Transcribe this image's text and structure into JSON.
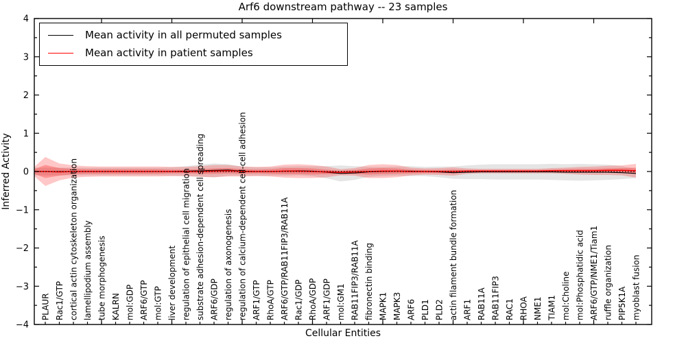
{
  "title": "Arf6 downstream pathway -- 23 samples",
  "axes": {
    "xlabel": "Cellular Entities",
    "ylabel": "Inferred Activity"
  },
  "legend": {
    "items": [
      {
        "label": "Mean activity in all permuted samples",
        "color": "#000000"
      },
      {
        "label": "Mean activity in patient samples",
        "color": "#ff0000"
      }
    ]
  },
  "chart_data": {
    "type": "line",
    "title": "Arf6 downstream pathway -- 23 samples",
    "xlabel": "Cellular Entities",
    "ylabel": "Inferred Activity",
    "ylim": [
      -4,
      4
    ],
    "yticks": [
      4,
      3,
      2,
      1,
      0,
      -1,
      -2,
      -3,
      -4
    ],
    "ytick_labels": [
      "4",
      "3",
      "2",
      "1",
      "0",
      "−1",
      "−2",
      "−3",
      "−4"
    ],
    "grid": false,
    "legend_position": "upper left",
    "zero_line": {
      "value": 0,
      "style": "dotted",
      "color": "#000000"
    },
    "categories": [
      "PLAUR",
      "Rac1/GTP",
      "cortical actin cytoskeleton organization",
      "lamellipodium assembly",
      "tube morphogenesis",
      "KALRN",
      "mol:GDP",
      "ARF6/GTP",
      "mol:GTP",
      "liver development",
      "regulation of epithelial cell migration",
      "substrate adhesion-dependent cell spreading",
      "ARF6/GDP",
      "regulation of axonogenesis",
      "regulation of calcium-dependent cell-cell adhesion",
      "ARF1/GTP",
      "RhoA/GTP",
      "ARF6/GTP/RAB11FIP3/RAB11A",
      "Rac1/GDP",
      "RhoA/GDP",
      "ARF1/GDP",
      "mol:GM1",
      "RAB11FIP3/RAB11A",
      "fibronectin binding",
      "MAPK1",
      "MAPK3",
      "ARF6",
      "PLD1",
      "PLD2",
      "actin filament bundle formation",
      "ARF1",
      "RAB11A",
      "RAB11FIP3",
      "RAC1",
      "RHOA",
      "NME1",
      "TIAM1",
      "mol:Choline",
      "mol:Phosphatidic acid",
      "ARF6/GTP/NME1/Tiam1",
      "ruffle organization",
      "PIP5K1A",
      "myoblast fusion"
    ],
    "series": [
      {
        "name": "Mean activity in all permuted samples",
        "color": "#000000",
        "band_color": "rgba(0,0,0,0.10)",
        "values": [
          0,
          0,
          0,
          0,
          0,
          0,
          0,
          0,
          0,
          0,
          0.01,
          0.02,
          0.03,
          0.04,
          0.01,
          0,
          0,
          0.01,
          0.02,
          0.01,
          -0.02,
          -0.05,
          -0.04,
          -0.01,
          0,
          0.01,
          0.01,
          0,
          -0.01,
          -0.03,
          -0.02,
          -0.01,
          -0.01,
          -0.01,
          -0.01,
          -0.01,
          -0.01,
          -0.02,
          -0.02,
          -0.02,
          -0.02,
          -0.03,
          -0.05
        ],
        "band_halfwidth": [
          0.1,
          0.1,
          0.1,
          0.1,
          0.1,
          0.1,
          0.1,
          0.1,
          0.1,
          0.11,
          0.13,
          0.16,
          0.18,
          0.15,
          0.12,
          0.11,
          0.11,
          0.12,
          0.12,
          0.13,
          0.16,
          0.21,
          0.18,
          0.13,
          0.12,
          0.12,
          0.13,
          0.12,
          0.14,
          0.16,
          0.18,
          0.19,
          0.2,
          0.2,
          0.2,
          0.2,
          0.21,
          0.21,
          0.22,
          0.21,
          0.2,
          0.17,
          0.12
        ]
      },
      {
        "name": "Mean activity in patient samples",
        "color": "#ff0000",
        "band_color": "rgba(255,0,0,0.22)",
        "values": [
          0,
          -0.01,
          0,
          0,
          0,
          0,
          0,
          0,
          0,
          0,
          0,
          0,
          0.01,
          0.02,
          0,
          0,
          0,
          0.01,
          0.01,
          0,
          -0.01,
          -0.02,
          -0.01,
          0,
          0.01,
          0.01,
          0,
          0,
          0,
          0,
          0.01,
          0.01,
          0.01,
          0.01,
          0.01,
          0.01,
          0.02,
          0.02,
          0.02,
          0.02,
          0.03,
          0.03,
          0.02
        ],
        "band_outer_halfwidth": [
          0.38,
          0.22,
          0.16,
          0.14,
          0.13,
          0.13,
          0.13,
          0.13,
          0.13,
          0.12,
          0.12,
          0.14,
          0.16,
          0.15,
          0.13,
          0.12,
          0.13,
          0.17,
          0.18,
          0.17,
          0.14,
          0.08,
          0.1,
          0.17,
          0.18,
          0.16,
          0.1,
          0.08,
          0.09,
          0.11,
          0.07,
          0.06,
          0.06,
          0.06,
          0.06,
          0.06,
          0.07,
          0.08,
          0.1,
          0.11,
          0.12,
          0.13,
          0.18
        ],
        "band_inner_halfwidth": [
          0.17,
          0.1,
          0.07,
          0.06,
          0.06,
          0.06,
          0.06,
          0.06,
          0.06,
          0.05,
          0.05,
          0.06,
          0.07,
          0.07,
          0.06,
          0.05,
          0.06,
          0.08,
          0.08,
          0.08,
          0.06,
          0.04,
          0.05,
          0.08,
          0.08,
          0.07,
          0.05,
          0.04,
          0.04,
          0.05,
          0.03,
          0.03,
          0.03,
          0.03,
          0.03,
          0.03,
          0.03,
          0.04,
          0.05,
          0.05,
          0.05,
          0.06,
          0.08
        ]
      }
    ]
  }
}
